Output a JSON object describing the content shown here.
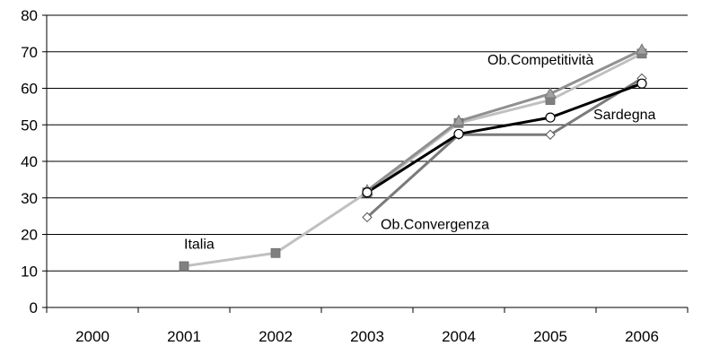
{
  "chart_data": {
    "type": "line",
    "x": [
      "2000",
      "2001",
      "2002",
      "2003",
      "2004",
      "2005",
      "2006"
    ],
    "ylim": [
      0,
      80
    ],
    "yticks": [
      0,
      10,
      20,
      30,
      40,
      50,
      60,
      70,
      80
    ],
    "grid": "horizontal",
    "series": [
      {
        "key": "italia",
        "values": [
          null,
          11.3,
          14.9,
          31.5,
          50.5,
          56.8,
          69.5
        ],
        "color": "#c0c0c0",
        "marker": "square",
        "markerColor": "#808080"
      },
      {
        "key": "competitivita",
        "values": [
          null,
          null,
          null,
          32.0,
          51.0,
          58.5,
          70.5
        ],
        "color": "#909090",
        "marker": "triangle",
        "markerColor": "#a0a0a0"
      },
      {
        "key": "convergenza",
        "values": [
          null,
          null,
          null,
          24.7,
          47.3,
          47.3,
          62.7
        ],
        "color": "#7a7a7a",
        "marker": "diamond",
        "markerColor": "#ffffff"
      },
      {
        "key": "sardegna",
        "values": [
          null,
          null,
          null,
          31.5,
          47.5,
          52.0,
          61.3
        ],
        "color": "#000000",
        "marker": "circle",
        "markerColor": "#ffffff"
      }
    ],
    "annotations": [
      {
        "text": "Italia",
        "x": "2001",
        "y": 17.5
      },
      {
        "text": "Ob.Convergenza",
        "x": "2003",
        "y": 23.0
      },
      {
        "text": "Ob.Competitività",
        "x": "2004",
        "y": 68.0
      },
      {
        "text": "Sardegna",
        "x": "2005",
        "y": 53.0
      }
    ]
  }
}
